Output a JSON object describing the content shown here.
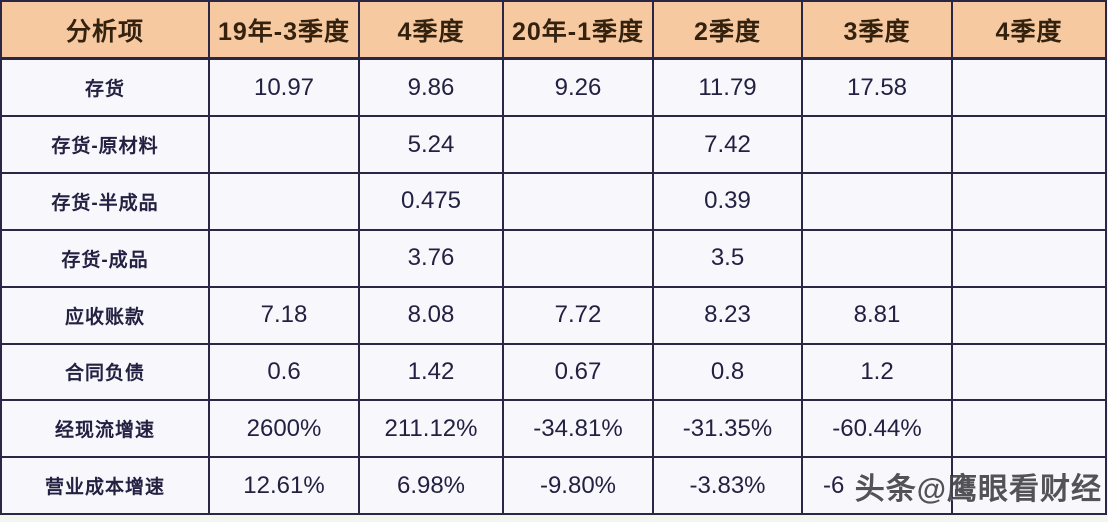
{
  "chart_data": {
    "type": "table",
    "title": "",
    "columns": [
      "分析项",
      "19年-3季度",
      "4季度",
      "20年-1季度",
      "2季度",
      "3季度",
      "4季度"
    ],
    "rows": [
      {
        "label": "存货",
        "values": [
          "10.97",
          "9.86",
          "9.26",
          "11.79",
          "17.58",
          ""
        ]
      },
      {
        "label": "存货-原材料",
        "values": [
          "",
          "5.24",
          "",
          "7.42",
          "",
          ""
        ]
      },
      {
        "label": "存货-半成品",
        "values": [
          "",
          "0.475",
          "",
          "0.39",
          "",
          ""
        ]
      },
      {
        "label": "存货-成品",
        "values": [
          "",
          "3.76",
          "",
          "3.5",
          "",
          ""
        ]
      },
      {
        "label": "应收账款",
        "values": [
          "7.18",
          "8.08",
          "7.72",
          "8.23",
          "8.81",
          ""
        ]
      },
      {
        "label": "合同负债",
        "values": [
          "0.6",
          "1.42",
          "0.67",
          "0.8",
          "1.2",
          ""
        ]
      },
      {
        "label": "经现流增速",
        "values": [
          "2600%",
          "211.12%",
          "-34.81%",
          "-31.35%",
          "-60.44%",
          ""
        ]
      },
      {
        "label": "营业成本增速",
        "values": [
          "12.61%",
          "6.98%",
          "-9.80%",
          "-3.83%",
          "-6",
          ""
        ],
        "partial_col": 4
      }
    ]
  },
  "watermark": {
    "text": "头条@鹰眼看财经"
  },
  "colors": {
    "header_bg": "#f6c9a0",
    "header_text": "#34220f",
    "border": "#2b2645",
    "cell_bg": "#f8f8fc",
    "cell_text": "#242042",
    "page_bg": "#f2f6ee"
  }
}
